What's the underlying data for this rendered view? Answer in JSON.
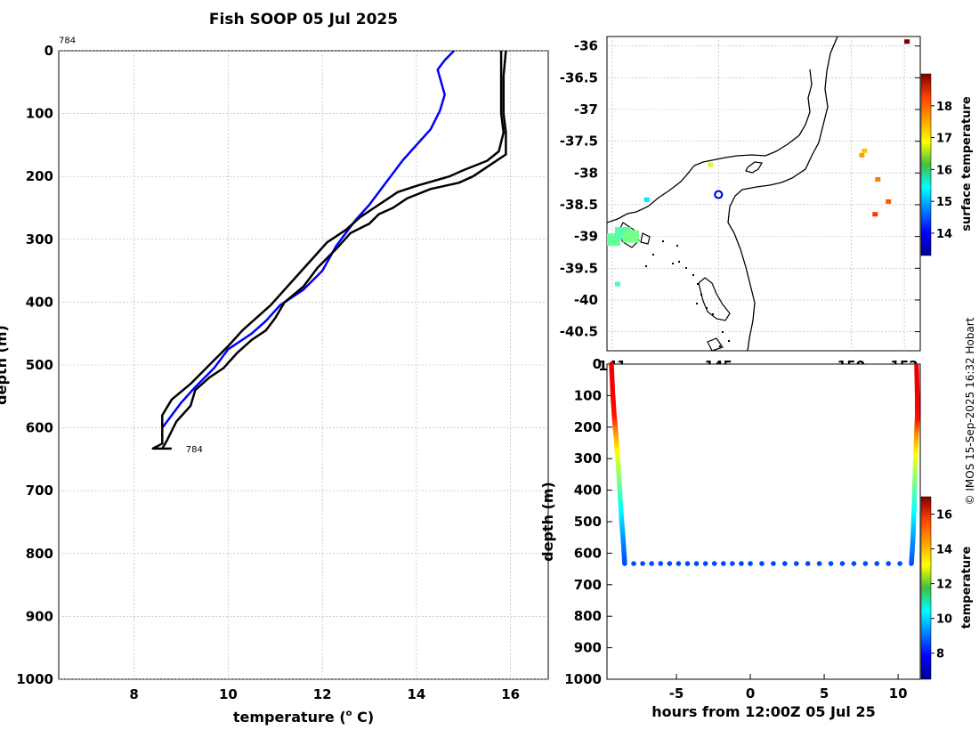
{
  "title": "Fish SOOP 05 Jul 2025",
  "credit": "© IMOS 15-Sep-2025 16:32 Hobart",
  "colors": {
    "xbt": "#000000",
    "climatology": "#0000ff",
    "grid": "#b0b0b0",
    "axis": "#000000",
    "land": "#ffffff",
    "marker": "#0000ee"
  },
  "chart_data": [
    {
      "id": "profile",
      "type": "line",
      "xlabel": "temperature (",
      "xlabel_sup": "o",
      "xlabel_end": " C)",
      "ylabel": "depth (m)",
      "xlim": [
        6.4,
        16.8
      ],
      "ylim": [
        0,
        1000
      ],
      "xticks": [
        8,
        10,
        12,
        14,
        16
      ],
      "yticks": [
        0,
        100,
        200,
        300,
        400,
        500,
        600,
        700,
        800,
        900,
        1000
      ],
      "grid": true,
      "annotations": [
        {
          "text": "784",
          "x": 6.4,
          "y": -18
        },
        {
          "text": "784",
          "x": 9.1,
          "y": 633
        }
      ],
      "series": [
        {
          "name": "climatology",
          "color": "blue",
          "points": [
            [
              14.8,
              0
            ],
            [
              14.6,
              15
            ],
            [
              14.45,
              30
            ],
            [
              14.6,
              70
            ],
            [
              14.5,
              95
            ],
            [
              14.3,
              125
            ],
            [
              14.0,
              150
            ],
            [
              13.7,
              175
            ],
            [
              13.4,
              205
            ],
            [
              13.0,
              245
            ],
            [
              12.7,
              270
            ],
            [
              12.3,
              310
            ],
            [
              12.0,
              350
            ],
            [
              11.6,
              380
            ],
            [
              11.1,
              405
            ],
            [
              10.8,
              430
            ],
            [
              10.5,
              450
            ],
            [
              10.0,
              475
            ],
            [
              9.7,
              505
            ],
            [
              9.3,
              535
            ],
            [
              9.0,
              560
            ],
            [
              8.6,
              600
            ]
          ]
        },
        {
          "name": "xbt_down",
          "color": "black",
          "points": [
            [
              15.9,
              0
            ],
            [
              15.85,
              40
            ],
            [
              15.85,
              100
            ],
            [
              15.9,
              130
            ],
            [
              15.9,
              165
            ],
            [
              15.6,
              180
            ],
            [
              15.2,
              200
            ],
            [
              14.9,
              210
            ],
            [
              14.3,
              220
            ],
            [
              13.8,
              235
            ],
            [
              13.5,
              250
            ],
            [
              13.2,
              260
            ],
            [
              13.0,
              275
            ],
            [
              12.6,
              290
            ],
            [
              12.3,
              315
            ],
            [
              11.9,
              345
            ],
            [
              11.6,
              375
            ],
            [
              11.2,
              400
            ],
            [
              11.0,
              425
            ],
            [
              10.8,
              445
            ],
            [
              10.5,
              460
            ],
            [
              10.2,
              480
            ],
            [
              9.9,
              505
            ],
            [
              9.6,
              520
            ],
            [
              9.3,
              540
            ],
            [
              9.2,
              565
            ],
            [
              8.9,
              590
            ],
            [
              8.7,
              620
            ],
            [
              8.6,
              633
            ]
          ]
        },
        {
          "name": "xbt_up",
          "color": "black",
          "points": [
            [
              15.8,
              0
            ],
            [
              15.8,
              40
            ],
            [
              15.8,
              100
            ],
            [
              15.85,
              130
            ],
            [
              15.75,
              160
            ],
            [
              15.5,
              175
            ],
            [
              15.0,
              190
            ],
            [
              14.7,
              200
            ],
            [
              14.0,
              215
            ],
            [
              13.6,
              225
            ],
            [
              13.4,
              235
            ],
            [
              13.1,
              250
            ],
            [
              12.8,
              265
            ],
            [
              12.5,
              285
            ],
            [
              12.1,
              305
            ],
            [
              11.8,
              330
            ],
            [
              11.5,
              355
            ],
            [
              11.2,
              380
            ],
            [
              10.9,
              405
            ],
            [
              10.6,
              425
            ],
            [
              10.3,
              445
            ],
            [
              10.0,
              470
            ],
            [
              9.6,
              500
            ],
            [
              9.2,
              530
            ],
            [
              8.8,
              555
            ],
            [
              8.6,
              580
            ],
            [
              8.6,
              625
            ],
            [
              8.4,
              633
            ],
            [
              8.8,
              633
            ]
          ]
        }
      ]
    },
    {
      "id": "map",
      "type": "map",
      "colorbar_label": "surface temperature",
      "xlim": [
        140.8,
        152.6
      ],
      "ylim": [
        -40.8,
        -35.85
      ],
      "xticks": [
        141,
        145,
        150,
        152
      ],
      "xtick_labels": [
        "141",
        "145",
        "150",
        "152"
      ],
      "yticks": [
        -36,
        -36.5,
        -37,
        -37.5,
        -38,
        -38.5,
        -39,
        -39.5,
        -40,
        -40.5
      ],
      "colorbar_ticks": [
        14,
        15,
        16,
        17,
        18
      ],
      "colorbar_range": [
        13.3,
        19.0
      ],
      "deployment_location": {
        "lon": 145.0,
        "lat": -38.34
      },
      "sst_patches": [
        {
          "lon": 152.1,
          "lat": -35.93,
          "t": 19.0
        },
        {
          "lon": 150.4,
          "lat": -37.72,
          "t": 17.4
        },
        {
          "lon": 150.5,
          "lat": -37.65,
          "t": 17.2
        },
        {
          "lon": 144.7,
          "lat": -37.87,
          "t": 16.6
        },
        {
          "lon": 151.0,
          "lat": -38.1,
          "t": 17.6
        },
        {
          "lon": 150.9,
          "lat": -38.65,
          "t": 18.0
        },
        {
          "lon": 151.4,
          "lat": -38.45,
          "t": 17.8
        },
        {
          "lon": 142.3,
          "lat": -38.42,
          "t": 15.3
        },
        {
          "lon": 141.0,
          "lat": -39.05,
          "t": 16.0
        },
        {
          "lon": 141.4,
          "lat": -38.95,
          "t": 15.9
        },
        {
          "lon": 141.7,
          "lat": -39.0,
          "t": 16.1
        },
        {
          "lon": 141.2,
          "lat": -39.75,
          "t": 15.8
        }
      ]
    },
    {
      "id": "section",
      "type": "scatter",
      "xlabel": "hours from 12:00Z 05 Jul 25",
      "ylabel": "depth (m)",
      "colorbar_label": "temperature",
      "xlim": [
        -9.7,
        11.5
      ],
      "ylim": [
        0,
        1000
      ],
      "xticks": [
        -5,
        0,
        5,
        10
      ],
      "yticks": [
        100,
        200,
        300,
        400,
        500,
        600,
        700,
        800,
        900,
        1000
      ],
      "ytick_top": "0",
      "colorbar_ticks": [
        8,
        10,
        12,
        14,
        16
      ],
      "colorbar_range": [
        6.5,
        17.0
      ],
      "down_cast": [
        [
          -9.4,
          0,
          15.9
        ],
        [
          -9.3,
          100,
          15.8
        ],
        [
          -9.2,
          170,
          15.5
        ],
        [
          -9.1,
          220,
          14.2
        ],
        [
          -9.0,
          280,
          13.1
        ],
        [
          -8.9,
          350,
          12.0
        ],
        [
          -8.8,
          430,
          10.9
        ],
        [
          -8.7,
          500,
          10.0
        ],
        [
          -8.6,
          560,
          9.3
        ],
        [
          -8.5,
          633,
          8.6
        ]
      ],
      "bottom": [
        [
          -8.5,
          633,
          8.6
        ],
        [
          0,
          633,
          8.5
        ],
        [
          10.9,
          633,
          8.6
        ]
      ],
      "up_cast": [
        [
          10.9,
          633,
          8.6
        ],
        [
          11.0,
          560,
          9.3
        ],
        [
          11.05,
          500,
          10.0
        ],
        [
          11.1,
          430,
          10.9
        ],
        [
          11.15,
          350,
          12.0
        ],
        [
          11.2,
          280,
          13.1
        ],
        [
          11.25,
          220,
          14.2
        ],
        [
          11.3,
          170,
          15.5
        ],
        [
          11.3,
          100,
          15.8
        ],
        [
          11.25,
          0,
          15.9
        ]
      ]
    }
  ]
}
